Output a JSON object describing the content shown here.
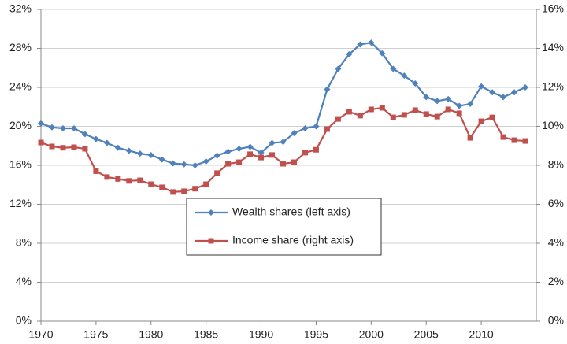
{
  "chart_data": {
    "type": "line",
    "x": [
      1970,
      1971,
      1972,
      1973,
      1974,
      1975,
      1976,
      1977,
      1978,
      1979,
      1980,
      1981,
      1982,
      1983,
      1984,
      1985,
      1986,
      1987,
      1988,
      1989,
      1990,
      1991,
      1992,
      1993,
      1994,
      1995,
      1996,
      1997,
      1998,
      1999,
      2000,
      2001,
      2002,
      2003,
      2004,
      2005,
      2006,
      2007,
      2008,
      2009,
      2010,
      2011,
      2012,
      2013,
      2014
    ],
    "series": [
      {
        "name": "Wealth shares (left axis)",
        "color": "#4f81bd",
        "marker": "diamond",
        "values": [
          20.3,
          19.9,
          19.8,
          19.8,
          19.2,
          18.7,
          18.3,
          17.8,
          17.5,
          17.2,
          17.05,
          16.6,
          16.2,
          16.1,
          16.0,
          16.4,
          17.0,
          17.4,
          17.7,
          17.9,
          17.3,
          18.3,
          18.4,
          19.3,
          19.8,
          20.0,
          23.8,
          25.9,
          27.4,
          28.4,
          28.6,
          27.5,
          25.9,
          25.2,
          24.4,
          23.0,
          22.6,
          22.8,
          22.1,
          22.3,
          24.1,
          23.5,
          23.0,
          23.5,
          24.0
        ]
      },
      {
        "name": "Income share (right axis)",
        "color": "#c0504d",
        "marker": "square",
        "axis": "y2",
        "values": [
          9.17,
          8.97,
          8.9,
          8.93,
          8.85,
          7.7,
          7.4,
          7.3,
          7.2,
          7.23,
          7.03,
          6.87,
          6.63,
          6.67,
          6.8,
          7.03,
          7.6,
          8.08,
          8.16,
          8.57,
          8.4,
          8.53,
          8.08,
          8.16,
          8.65,
          8.8,
          9.86,
          10.38,
          10.75,
          10.55,
          10.87,
          10.95,
          10.46,
          10.59,
          10.83,
          10.63,
          10.5,
          10.87,
          10.67,
          9.41,
          10.26,
          10.46,
          9.45,
          9.29,
          9.25
        ]
      }
    ],
    "xlim": [
      1970,
      2015
    ],
    "xticks": [
      1970,
      1975,
      1980,
      1985,
      1990,
      1995,
      2000,
      2005,
      2010
    ],
    "ylim": [
      0,
      32
    ],
    "yticks": [
      {
        "value": 0,
        "label": "0%"
      },
      {
        "value": 4,
        "label": "4%"
      },
      {
        "value": 8,
        "label": "8%"
      },
      {
        "value": 12,
        "label": "12%"
      },
      {
        "value": 16,
        "label": "16%"
      },
      {
        "value": 20,
        "label": "20%"
      },
      {
        "value": 24,
        "label": "24%"
      },
      {
        "value": 28,
        "label": "28%"
      },
      {
        "value": 32,
        "label": "32%"
      }
    ],
    "y2lim": [
      0,
      16
    ],
    "y2ticks": [
      {
        "value": 0,
        "label": "0%"
      },
      {
        "value": 2,
        "label": "2%"
      },
      {
        "value": 4,
        "label": "4%"
      },
      {
        "value": 6,
        "label": "6%"
      },
      {
        "value": 8,
        "label": "8%"
      },
      {
        "value": 10,
        "label": "10%"
      },
      {
        "value": 12,
        "label": "12%"
      },
      {
        "value": 14,
        "label": "14%"
      },
      {
        "value": 16,
        "label": "16%"
      }
    ],
    "grid": true,
    "legend": "center"
  }
}
